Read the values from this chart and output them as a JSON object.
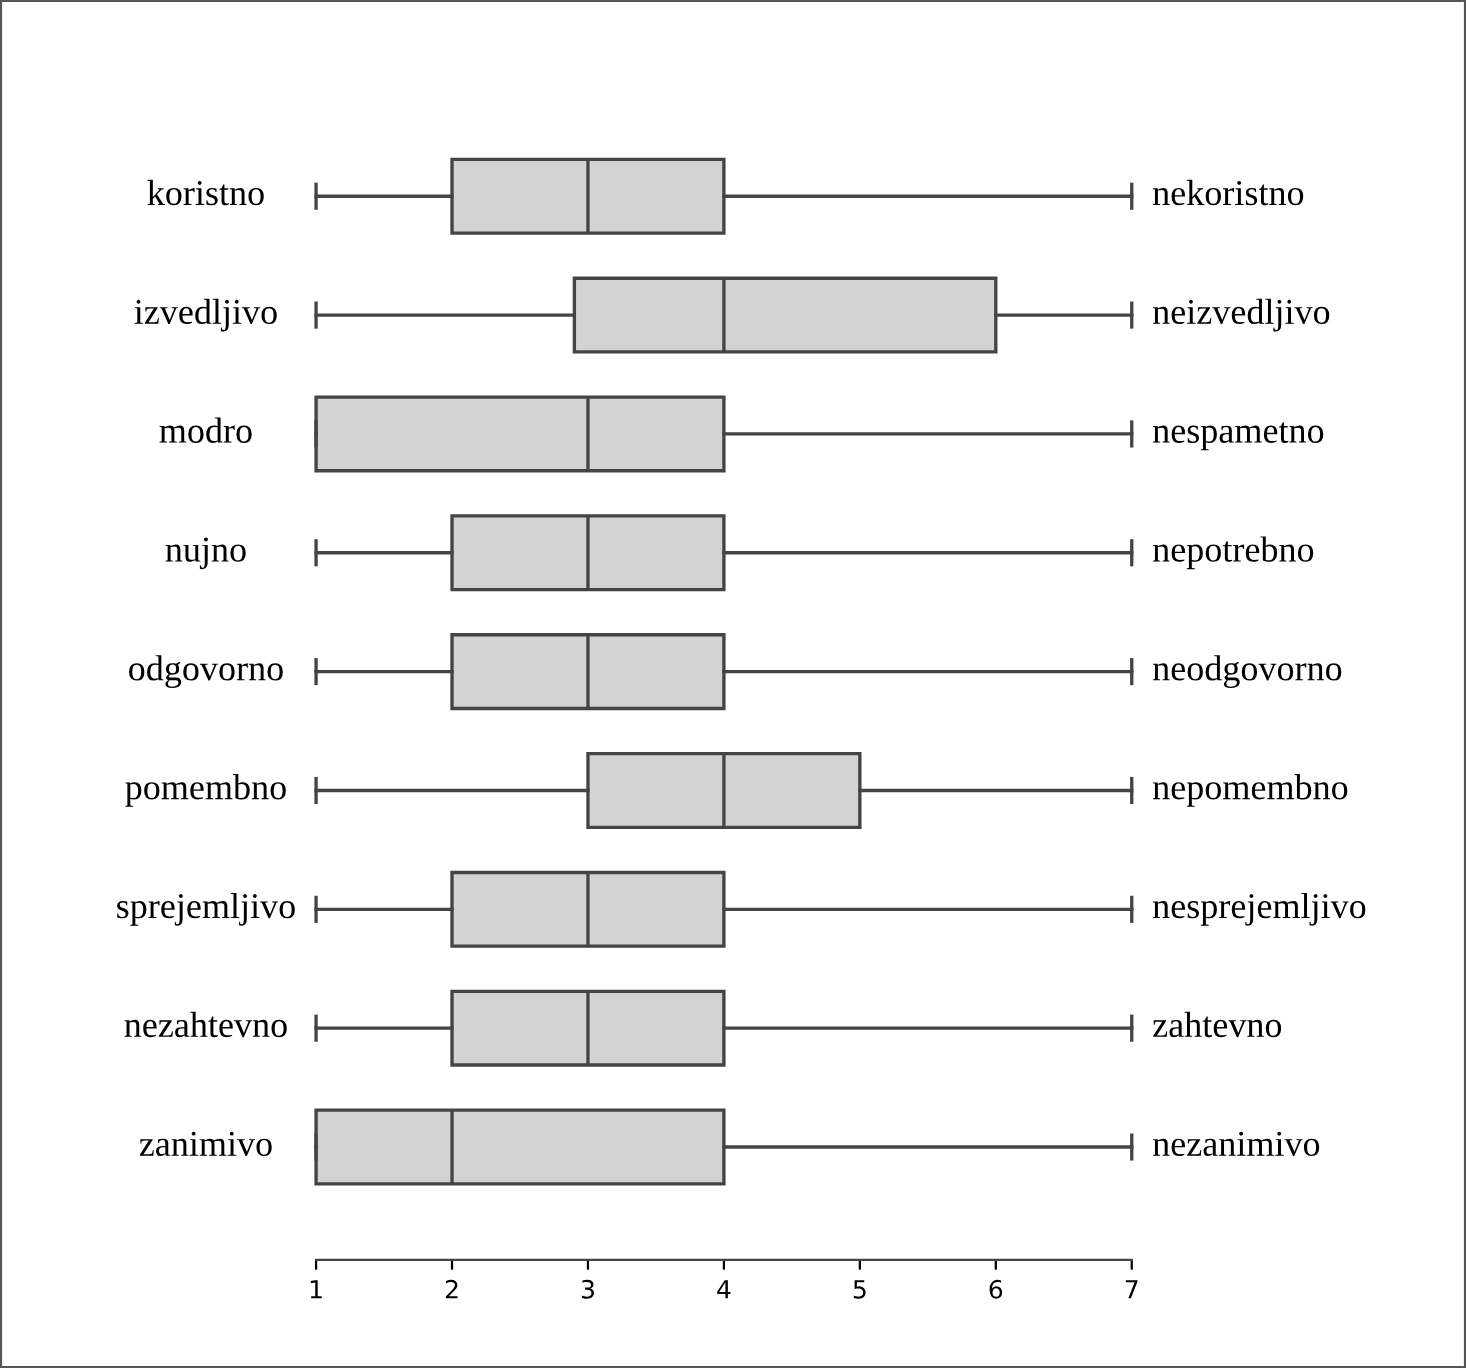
{
  "chart_data": {
    "type": "box",
    "orientation": "horizontal",
    "categories": [
      "koristno",
      "izvedljivo",
      "modro",
      "nujno",
      "odgovorno",
      "pomembno",
      "sprejemljivo",
      "nezahtevno",
      "zanimivo"
    ],
    "y2_categories": [
      "nekoristno",
      "neizvedljivo",
      "nespametno",
      "nepotrebno",
      "neodgovorno",
      "nepomembno",
      "nesprejemljivo",
      "zahtevno",
      "nezanimivo"
    ],
    "boxes": [
      {
        "low": 1,
        "q1": 2,
        "median": 3,
        "q3": 4,
        "high": 7
      },
      {
        "low": 1,
        "q1": 2.9,
        "median": 4,
        "q3": 6,
        "high": 7
      },
      {
        "low": 1,
        "q1": 1,
        "median": 3,
        "q3": 4,
        "high": 7
      },
      {
        "low": 1,
        "q1": 2,
        "median": 3,
        "q3": 4,
        "high": 7
      },
      {
        "low": 1,
        "q1": 2,
        "median": 3,
        "q3": 4,
        "high": 7
      },
      {
        "low": 1,
        "q1": 3,
        "median": 4,
        "q3": 5,
        "high": 7
      },
      {
        "low": 1,
        "q1": 2,
        "median": 3,
        "q3": 4,
        "high": 7
      },
      {
        "low": 1,
        "q1": 2,
        "median": 3,
        "q3": 4,
        "high": 7
      },
      {
        "low": 1,
        "q1": 1,
        "median": 2,
        "q3": 4,
        "high": 7
      }
    ],
    "color": "#d3d3d3",
    "xlim": [
      1,
      7
    ],
    "xticks": [
      1,
      2,
      3,
      4,
      5,
      6,
      7
    ],
    "grid": false,
    "legend": false
  }
}
